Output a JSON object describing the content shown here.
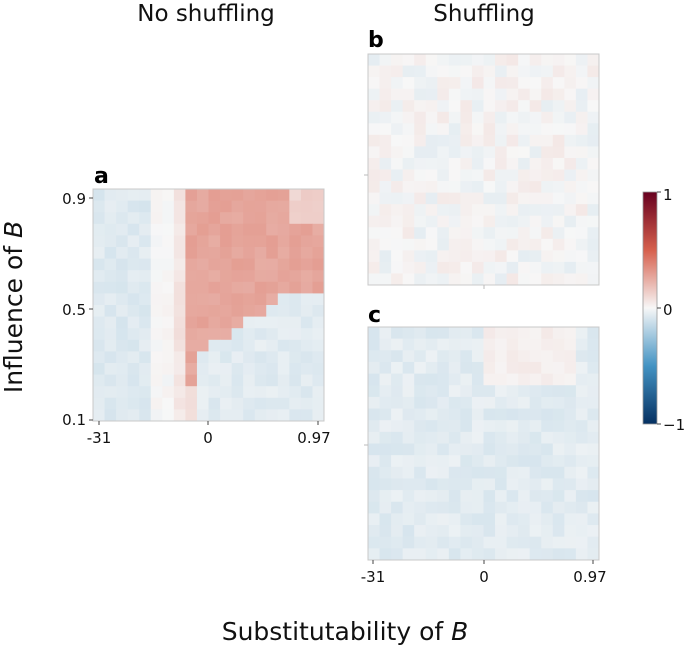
{
  "column_titles": {
    "left": "No shuffling",
    "right": "Shuffling"
  },
  "axis_titles": {
    "xlabel_prefix": "Substitutability of ",
    "ylabel_prefix": "Influence of ",
    "variable": "B"
  },
  "colorbar": {
    "min": -1,
    "max": 1,
    "ticks": [
      "1",
      "0",
      "−1"
    ],
    "colormap": "RdBu_r"
  },
  "chart_data": [
    {
      "type": "heatmap",
      "panel": "a",
      "title": "No shuffling",
      "xlabel": "Substitutability of B",
      "ylabel": "Influence of B",
      "xticks": [
        "-31",
        "0",
        "0.97"
      ],
      "yticks": [
        "0.9",
        "0.5",
        "0.1"
      ],
      "grid_size": [
        20,
        20
      ],
      "value_range": [
        -1,
        1
      ],
      "regions": [
        {
          "name": "low-substitutability",
          "mean_value": -0.07
        },
        {
          "name": "transition-band",
          "mean_value": 0.0
        },
        {
          "name": "positive-wedge",
          "mean_value": 0.27
        },
        {
          "name": "high-substitutability-low-influence",
          "mean_value": -0.06
        }
      ]
    },
    {
      "type": "heatmap",
      "panel": "b",
      "title": "Shuffling",
      "grid_size": [
        20,
        20
      ],
      "value_range": [
        -1,
        1
      ],
      "mean_value": 0.0,
      "noise_amplitude": 0.05
    },
    {
      "type": "heatmap",
      "panel": "c",
      "xticks": [
        "-31",
        "0",
        "0.97"
      ],
      "grid_size": [
        20,
        20
      ],
      "value_range": [
        -1,
        1
      ],
      "mean_value": -0.06,
      "note": "slight positive patch near top center"
    }
  ]
}
